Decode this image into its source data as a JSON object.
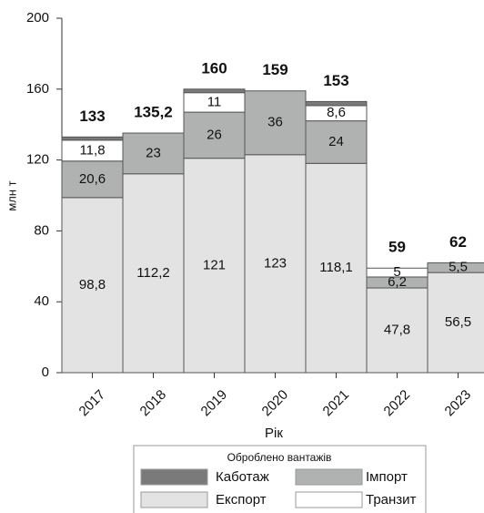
{
  "chart_data": {
    "type": "stacked_bar",
    "ylabel": "млн т",
    "xlabel": "Рік",
    "legend_title": "Оброблено вантажів",
    "categories": [
      "2017",
      "2018",
      "2019",
      "2020",
      "2021",
      "2022",
      "2023"
    ],
    "series": [
      {
        "name": "Експорт",
        "color": "#e3e3e3",
        "values": [
          98.8,
          112.2,
          121,
          123,
          118.1,
          47.8,
          56.5
        ],
        "value_labels": [
          "98,8",
          "112,2",
          "121",
          "123",
          "118,1",
          "47,8",
          "56,5"
        ]
      },
      {
        "name": "Імпорт",
        "color": "#b0b2b2",
        "values": [
          20.6,
          23,
          26,
          36,
          24,
          6.2,
          5.5
        ],
        "value_labels": [
          "20,6",
          "23",
          "26",
          "36",
          "24",
          "6,2",
          "5,5"
        ]
      },
      {
        "name": "Транзит",
        "color": "#ffffff",
        "values": [
          11.8,
          0,
          11,
          0,
          8.6,
          5,
          0
        ],
        "value_labels": [
          "11,8",
          null,
          "11",
          null,
          "8,6",
          "5",
          null
        ]
      },
      {
        "name": "Каботаж",
        "color": "#7a7a7a",
        "values": [
          1.8,
          0,
          2,
          0,
          2.3,
          0,
          0
        ],
        "value_labels": [
          null,
          null,
          null,
          null,
          null,
          null,
          null
        ]
      }
    ],
    "totals": [
      133,
      135.2,
      160,
      159,
      153,
      59,
      62
    ],
    "total_labels": [
      "133",
      "135,2",
      "160",
      "159",
      "153",
      "59",
      "62"
    ],
    "ylim": [
      0,
      200
    ],
    "yticks": [
      0,
      40,
      80,
      120,
      160,
      200
    ],
    "grid": false
  }
}
